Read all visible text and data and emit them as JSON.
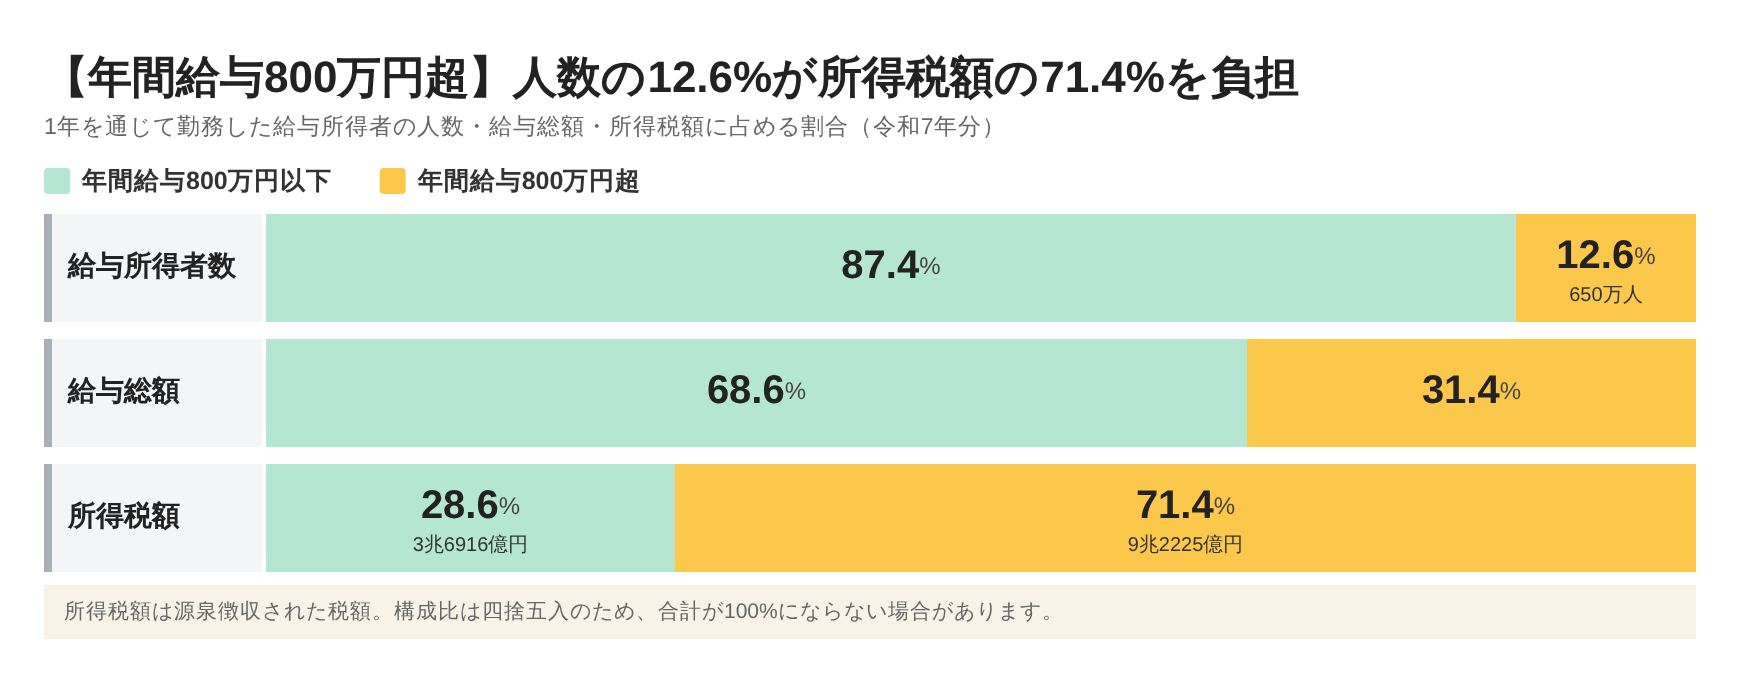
{
  "chart_data": {
    "type": "bar",
    "orientation": "horizontal",
    "stacked": true,
    "title": "【年間給与800万円超】人数の12.6%が所得税額の71.4%を負担",
    "subtitle": "1年を通じて勤務した給与所得者の人数・給与総額・所得税額に占める割合（令和7年分）",
    "categories": [
      "給与所得者数",
      "給与総額",
      "所得税額"
    ],
    "series": [
      {
        "name": "年間給与800万円以下",
        "color": "#b5e6d1",
        "values": [
          87.4,
          68.6,
          28.6
        ],
        "value_labels": [
          "87.4%",
          "68.6%",
          "28.6%"
        ]
      },
      {
        "name": "年間給与800万円超",
        "color": "#fbc84c",
        "values": [
          12.6,
          31.4,
          71.4
        ],
        "value_labels": [
          "12.6%",
          "31.4%",
          "71.4%"
        ]
      }
    ],
    "legend": "top left",
    "annotations": [
      {
        "text": "650万人",
        "x": 93.7,
        "y": "給与所得者数"
      },
      {
        "text": "3兆6916億円",
        "x": 14.3,
        "y": "所得税額"
      },
      {
        "text": "9兆2225億円",
        "x": 64.3,
        "y": "所得税額"
      },
      "所得税額は源泉徴収された税額。構成比は四捨五入のため、合計が100%にならない場合があります。"
    ]
  }
}
